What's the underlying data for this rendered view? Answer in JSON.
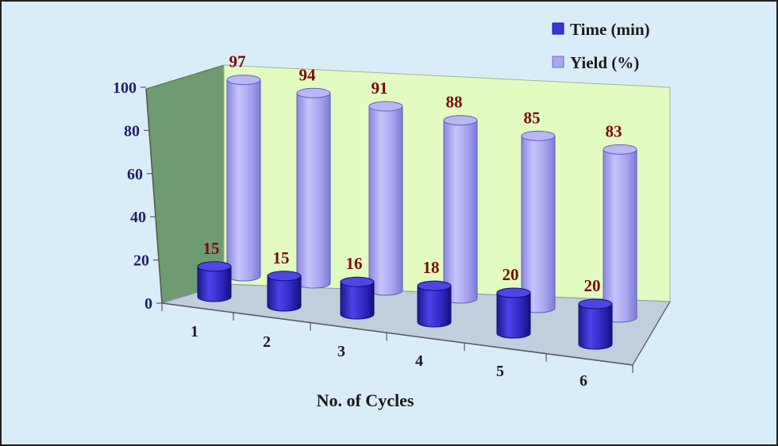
{
  "chart_data": {
    "type": "bar",
    "categories": [
      "1",
      "2",
      "3",
      "4",
      "5",
      "6"
    ],
    "series": [
      {
        "name": "Time (min)",
        "values": [
          15,
          15,
          16,
          18,
          20,
          20
        ],
        "color": "#3b34d6"
      },
      {
        "name": "Yield (%)",
        "values": [
          97,
          94,
          91,
          88,
          85,
          83
        ],
        "color": "#a9a7f2"
      }
    ],
    "xlabel": "No. of Cycles",
    "ylabel": "",
    "ylim": [
      0,
      100
    ],
    "yticks": [
      "0",
      "20",
      "40",
      "60",
      "80",
      "100"
    ],
    "grid": false,
    "legend": "top-right",
    "style": "3d-cylinder",
    "colors": {
      "background": "#d9edf9",
      "back_wall": "#e2fbc1",
      "side_wall": "#6f9b73",
      "floor": "#bfcfdc",
      "data_label": "#7a0b0b",
      "axis_text": "#1f1f66"
    }
  }
}
